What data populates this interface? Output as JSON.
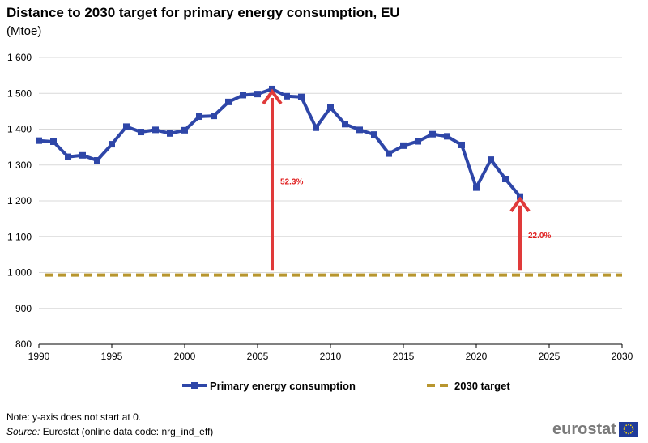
{
  "title": "Distance to 2030 target for primary energy consumption, EU",
  "subtitle": "(Mtoe)",
  "note": "Note: y-axis does not start at 0.",
  "source": {
    "label": "Source:",
    "text": " Eurostat (online data code: nrg_ind_eff)"
  },
  "logo": {
    "text": "eurostat"
  },
  "colors": {
    "series": "#2e46a8",
    "target": "#b8962f",
    "arrow": "#e03a3a",
    "annotation": "#e01e1e",
    "grid": "#d9d9d9",
    "logo_flag": "#1f3b9a",
    "logo_stars": "#f5d20a"
  },
  "chart_data": {
    "type": "line",
    "title": "Distance to 2030 target for primary energy consumption, EU",
    "ylabel": "(Mtoe)",
    "xlabel": "",
    "xlim": [
      1990,
      2030
    ],
    "ylim": [
      800,
      1600
    ],
    "x_ticks": [
      "1990",
      "1995",
      "2000",
      "2005",
      "2010",
      "2015",
      "2020",
      "2025",
      "2030"
    ],
    "x_tick_values": [
      1990,
      1995,
      2000,
      2005,
      2010,
      2015,
      2020,
      2025,
      2030
    ],
    "y_ticks": [
      "800",
      "900",
      "1 000",
      "1 100",
      "1 200",
      "1 300",
      "1 400",
      "1 500",
      "1 600"
    ],
    "y_tick_values": [
      800,
      900,
      1000,
      1100,
      1200,
      1300,
      1400,
      1500,
      1600
    ],
    "grid": true,
    "legend_position": "bottom",
    "series": [
      {
        "name": "Primary energy consumption",
        "style": "solid-with-square-markers",
        "x": [
          1990,
          1991,
          1992,
          1993,
          1994,
          1995,
          1996,
          1997,
          1998,
          1999,
          2000,
          2001,
          2002,
          2003,
          2004,
          2005,
          2006,
          2007,
          2008,
          2009,
          2010,
          2011,
          2012,
          2013,
          2014,
          2015,
          2016,
          2017,
          2018,
          2019,
          2020,
          2021,
          2022,
          2023
        ],
        "values": [
          1368,
          1365,
          1323,
          1327,
          1313,
          1358,
          1407,
          1392,
          1398,
          1388,
          1397,
          1435,
          1437,
          1476,
          1495,
          1498,
          1512,
          1492,
          1490,
          1404,
          1460,
          1414,
          1398,
          1385,
          1332,
          1354,
          1366,
          1386,
          1380,
          1356,
          1237,
          1315,
          1261,
          1212
        ]
      },
      {
        "name": "2030 target",
        "style": "dashed",
        "x": [
          1990,
          2030
        ],
        "values": [
          993,
          993
        ]
      }
    ],
    "annotations": [
      {
        "label": "52.3%",
        "year": 2006,
        "from": 1005,
        "to": 1505
      },
      {
        "label": "22.0%",
        "year": 2023,
        "from": 1005,
        "to": 1205
      }
    ]
  }
}
